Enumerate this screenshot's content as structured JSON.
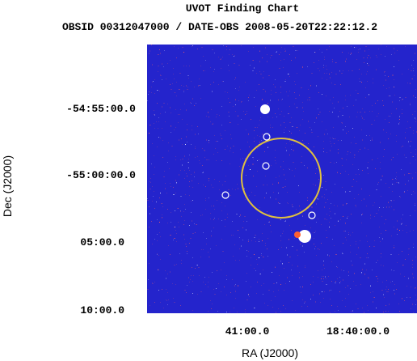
{
  "header": {
    "title": "UVOT Finding Chart",
    "subtitle": "OBSID 00312047000 / DATE-OBS 2008-05-20T22:22:12.2"
  },
  "axes": {
    "x_label": "RA (J2000)",
    "y_label": "Dec (J2000)",
    "x_tick_labels": [
      "41:00.0",
      "18:40:00.0"
    ],
    "y_tick_labels": [
      "-54:55:00.0",
      "-55:00:00.0",
      "05:00.0",
      "10:00.0"
    ]
  }
}
